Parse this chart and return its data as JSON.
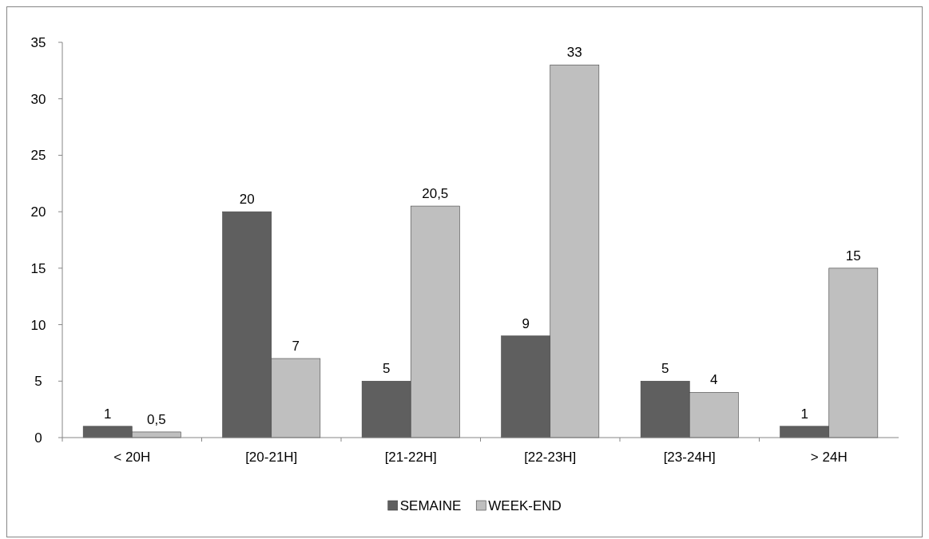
{
  "chart_data": {
    "type": "bar",
    "categories": [
      "< 20H",
      "[20-21H]",
      "[21-22H]",
      "[22-23H]",
      "[23-24H]",
      "> 24H"
    ],
    "series": [
      {
        "name": "SEMAINE",
        "color": "#5f5f5f",
        "values": [
          1,
          20,
          5,
          9,
          5,
          1
        ],
        "value_labels": [
          "1",
          "20",
          "5",
          "9",
          "5",
          "1"
        ]
      },
      {
        "name": "WEEK-END",
        "color": "#bfbfbf",
        "values": [
          0.5,
          7,
          20.5,
          33,
          4,
          15
        ],
        "value_labels": [
          "0,5",
          "7",
          "20,5",
          "33",
          "4",
          "15"
        ]
      }
    ],
    "ylim": [
      0,
      35
    ],
    "yticks": [
      0,
      5,
      10,
      15,
      20,
      25,
      30,
      35
    ],
    "grid": false,
    "legend": "bottom"
  }
}
